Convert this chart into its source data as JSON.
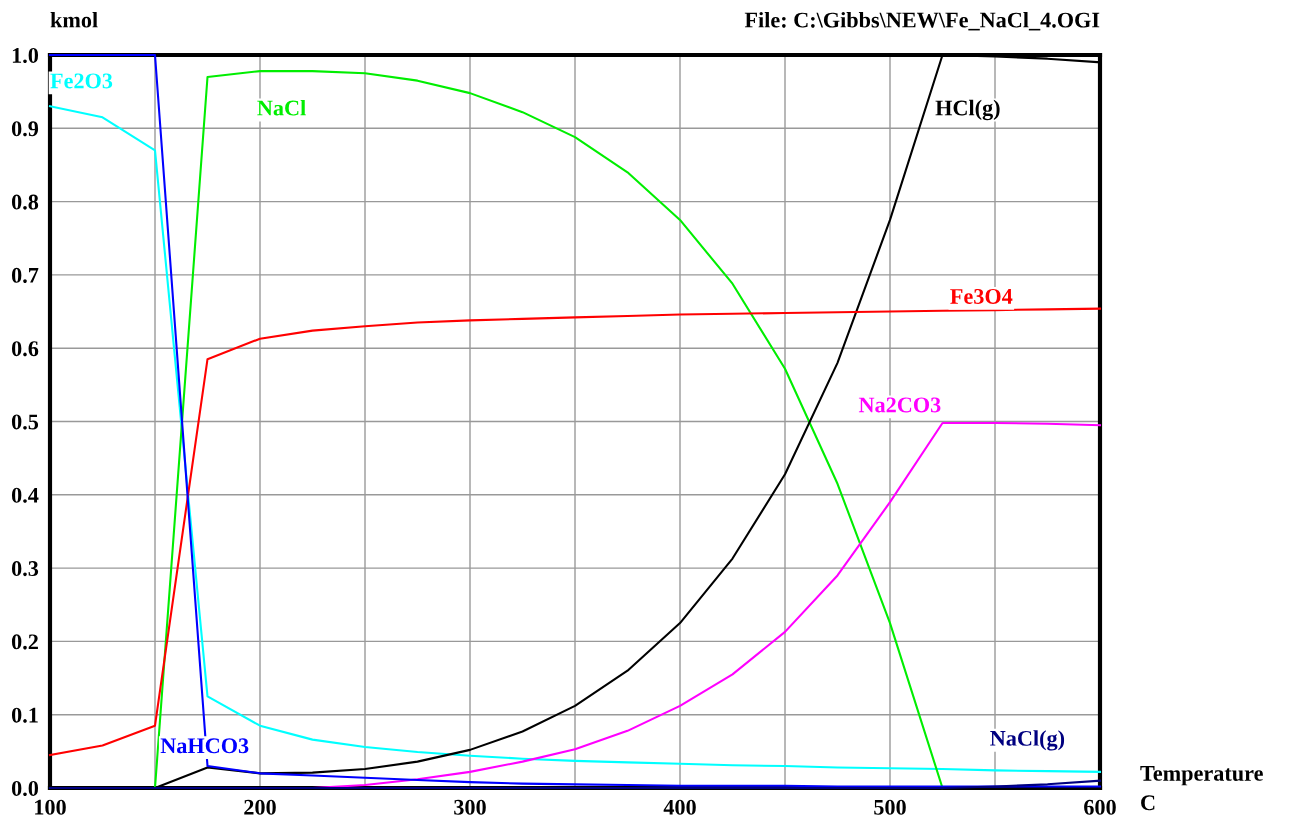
{
  "chart_data": {
    "type": "line",
    "title": "File: C:\\Gibbs\\NEW\\Fe_NaCl_4.OGI",
    "xlabel": "Temperature\nC",
    "ylabel": "kmol",
    "x": [
      100,
      125,
      150,
      175,
      200,
      225,
      250,
      275,
      300,
      325,
      350,
      375,
      400,
      425,
      450,
      475,
      500,
      525,
      550,
      575,
      600
    ],
    "series": [
      {
        "name": "Fe2O3",
        "color": "#00ffff",
        "values": [
          0.93,
          0.915,
          0.87,
          0.125,
          0.085,
          0.066,
          0.056,
          0.049,
          0.044,
          0.04,
          0.037,
          0.035,
          0.033,
          0.031,
          0.03,
          0.028,
          0.027,
          0.026,
          0.024,
          0.023,
          0.022
        ]
      },
      {
        "name": "NaCl",
        "color": "#00ee00",
        "values": [
          0,
          0,
          0,
          0.97,
          0.978,
          0.978,
          0.975,
          0.965,
          0.948,
          0.922,
          0.888,
          0.84,
          0.775,
          0.688,
          0.572,
          0.415,
          0.225,
          0,
          null,
          null,
          null
        ]
      },
      {
        "name": "HCl(g)",
        "color": "#000000",
        "values": [
          0,
          0,
          0,
          0.028,
          0.02,
          0.021,
          0.026,
          0.036,
          0.052,
          0.077,
          0.112,
          0.16,
          0.225,
          0.313,
          0.428,
          0.58,
          0.775,
          1.0,
          0.998,
          0.995,
          0.99
        ]
      },
      {
        "name": "Fe3O4",
        "color": "#ff0000",
        "values": [
          0.045,
          0.058,
          0.085,
          0.585,
          0.613,
          0.624,
          0.63,
          0.635,
          0.638,
          0.64,
          0.642,
          0.644,
          0.646,
          0.647,
          0.648,
          0.649,
          0.65,
          0.651,
          0.652,
          0.653,
          0.654
        ]
      },
      {
        "name": "Na2CO3",
        "color": "#ff00ff",
        "values": [
          null,
          null,
          null,
          null,
          0,
          0,
          0.004,
          0.012,
          0.022,
          0.036,
          0.053,
          0.078,
          0.112,
          0.155,
          0.213,
          0.29,
          0.39,
          0.498,
          0.498,
          0.497,
          0.495
        ]
      },
      {
        "name": "NaHCO3",
        "color": "#0000ff",
        "values": [
          1.0,
          1.0,
          1.0,
          0.03,
          0.02,
          0.017,
          0.014,
          0.011,
          0.008,
          0.006,
          0.005,
          0.004,
          0.003,
          0.003,
          0.003,
          0.002,
          0.002,
          0.002,
          0.002,
          0.002,
          0.002
        ]
      },
      {
        "name": "NaCl(g)",
        "color": "#000080",
        "values": [
          0,
          0,
          0,
          0,
          0,
          0,
          0,
          0,
          0,
          0,
          0,
          0,
          0,
          0,
          0,
          0,
          0,
          0,
          0.002,
          0.005,
          0.01
        ]
      }
    ],
    "xlim": [
      100,
      600
    ],
    "ylim": [
      0,
      1.0
    ],
    "xticks": [
      100,
      {
        "value": 150,
        "label": null
      },
      200,
      {
        "value": 250,
        "label": null
      },
      300,
      {
        "value": 350,
        "label": null
      },
      400,
      {
        "value": 450,
        "label": null
      },
      500,
      {
        "value": 550,
        "label": null
      },
      600
    ],
    "yticks": [
      {
        "value": 0,
        "label": "0.0"
      },
      {
        "value": 0.1,
        "label": "0.1"
      },
      {
        "value": 0.2,
        "label": "0.2"
      },
      {
        "value": 0.3,
        "label": "0.3"
      },
      {
        "value": 0.4,
        "label": "0.4"
      },
      {
        "value": 0.5,
        "label": "0.5"
      },
      {
        "value": 0.6,
        "label": "0.6"
      },
      {
        "value": 0.7,
        "label": "0.7"
      },
      {
        "value": 0.8,
        "label": "0.8"
      },
      {
        "value": 0.9,
        "label": "0.9"
      },
      {
        "value": 1.0,
        "label": "1.0"
      }
    ],
    "grid": true,
    "legend": false,
    "line_style": "solid",
    "marker": "none"
  }
}
